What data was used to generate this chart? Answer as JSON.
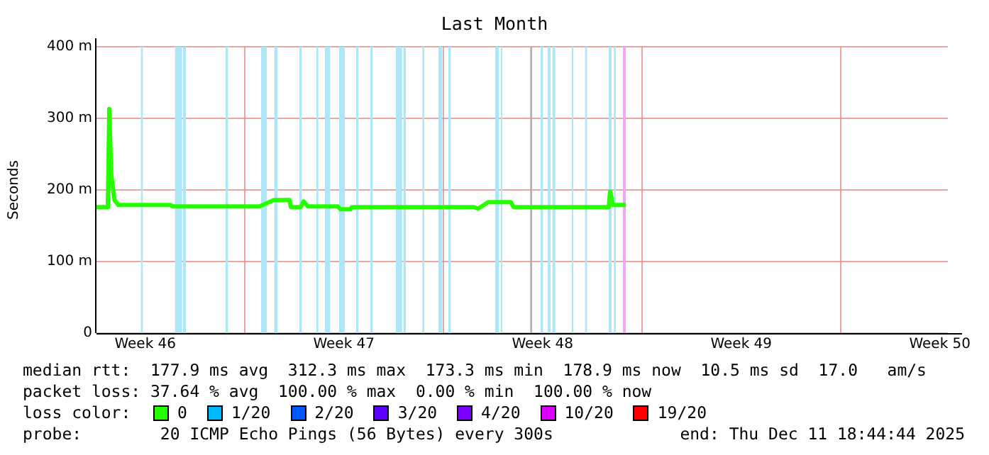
{
  "chart_data": {
    "type": "line",
    "title": "Last Month",
    "ylabel": "Seconds",
    "legend_title": "loss color:",
    "legend": "bottom",
    "grid": true,
    "marker": "none",
    "line_style": "solid",
    "xlim": [
      "2025-11-11T18:44",
      "2025-12-11T18:44"
    ],
    "xticks": [
      {
        "value": "2025-11-13T12:00",
        "label": "Week 46"
      },
      {
        "value": "2025-11-17",
        "label": null
      },
      {
        "value": "2025-11-20T12:00",
        "label": "Week 47"
      },
      {
        "value": "2025-11-24",
        "label": null
      },
      {
        "value": "2025-11-27T12:00",
        "label": "Week 48"
      },
      {
        "value": "2025-12-01",
        "label": null
      },
      {
        "value": "2025-12-04T12:00",
        "label": "Week 49"
      },
      {
        "value": "2025-12-08",
        "label": null
      },
      {
        "value": "2025-12-11T12:00",
        "label": "Week 50"
      }
    ],
    "ylim": [
      0,
      400
    ],
    "yticks": [
      0,
      {
        "value": 100,
        "label": "100 m"
      },
      {
        "value": 200,
        "label": "200 m"
      },
      {
        "value": 300,
        "label": "300 m"
      },
      {
        "value": 400,
        "label": "400 m"
      }
    ],
    "series": [
      {
        "name": "0",
        "color": "#26ff00",
        "x": [
          "2025-11-11T18:44",
          "2025-11-12T04:20",
          "2025-11-12T05:32",
          "2025-11-12T07:08",
          "2025-11-12T09:56",
          "2025-11-12T13:08",
          "2025-11-14T09:08",
          "2025-11-14T11:32",
          "2025-11-17T12:44",
          "2025-11-18T00:44",
          "2025-11-18T13:56",
          "2025-11-18T15:08",
          "2025-11-18T23:32",
          "2025-11-19T01:56",
          "2025-11-19T05:32",
          "2025-11-20T06:44",
          "2025-11-20T09:08",
          "2025-11-20T17:32",
          "2025-11-20T18:44",
          "2025-11-25T01:56",
          "2025-11-25T05:32",
          "2025-11-25T10:20",
          "2025-11-25T13:56",
          "2025-11-26T09:08",
          "2025-11-26T11:32",
          "2025-11-29T19:56",
          "2025-11-29T21:08",
          "2025-11-29T23:32",
          "2025-11-30T10:20"
        ],
        "values": [
          176,
          176,
          313,
          223,
          186,
          179,
          179,
          177,
          177,
          186,
          186,
          176,
          176,
          184,
          177,
          177,
          173,
          173,
          176,
          176,
          174,
          179,
          183,
          183,
          176,
          176,
          198,
          179,
          179
        ]
      },
      {
        "name": "1/20",
        "color": "#00b8ff"
      },
      {
        "name": "2/20",
        "color": "#0059ff"
      },
      {
        "name": "3/20",
        "color": "#5e00ff"
      },
      {
        "name": "4/20",
        "color": "#7e00ff"
      },
      {
        "name": "10/20",
        "color": "#dd00ff"
      },
      {
        "name": "19/20",
        "color": "#ff0000"
      }
    ],
    "bands": [
      {
        "axis": "x",
        "from": "2025-11-13T08:20",
        "to": "2025-11-13T09:56",
        "color": "#aee6f8"
      },
      {
        "axis": "x",
        "from": "2025-11-14T13:08",
        "to": "2025-11-14T19:08",
        "color": "#aee6f8"
      },
      {
        "axis": "x",
        "from": "2025-11-14T19:56",
        "to": "2025-11-14T22:20",
        "color": "#aee6f8"
      },
      {
        "axis": "x",
        "from": "2025-11-16T07:56",
        "to": "2025-11-16T09:56",
        "color": "#aee6f8"
      },
      {
        "axis": "x",
        "from": "2025-11-17T13:56",
        "to": "2025-11-17T18:44",
        "color": "#aee6f8"
      },
      {
        "axis": "x",
        "from": "2025-11-18T01:08",
        "to": "2025-11-18T03:56",
        "color": "#aee6f8"
      },
      {
        "axis": "x",
        "from": "2025-11-18T22:20",
        "to": "2025-11-19T00:20",
        "color": "#aee6f8"
      },
      {
        "axis": "x",
        "from": "2025-11-19T12:44",
        "to": "2025-11-19T14:20",
        "color": "#aee6f8"
      },
      {
        "axis": "x",
        "from": "2025-11-19T19:56",
        "to": "2025-11-20T00:20",
        "color": "#aee6f8"
      },
      {
        "axis": "x",
        "from": "2025-11-20T07:56",
        "to": "2025-11-20T12:44",
        "color": "#aee6f8"
      },
      {
        "axis": "x",
        "from": "2025-11-20T22:20",
        "to": "2025-11-21T00:20",
        "color": "#aee6f8"
      },
      {
        "axis": "x",
        "from": "2025-11-21T10:20",
        "to": "2025-11-21T12:20",
        "color": "#aee6f8"
      },
      {
        "axis": "x",
        "from": "2025-11-22T07:56",
        "to": "2025-11-22T13:08",
        "color": "#aee6f8"
      },
      {
        "axis": "x",
        "from": "2025-11-22T14:20",
        "to": "2025-11-22T16:20",
        "color": "#aee6f8"
      },
      {
        "axis": "x",
        "from": "2025-11-23T06:20",
        "to": "2025-11-23T07:56",
        "color": "#aee6f8"
      },
      {
        "axis": "x",
        "from": "2025-11-23T19:56",
        "to": "2025-11-23T23:08",
        "color": "#aee6f8"
      },
      {
        "axis": "x",
        "from": "2025-11-24T04:20",
        "to": "2025-11-24T06:20",
        "color": "#aee6f8"
      },
      {
        "axis": "x",
        "from": "2025-11-25T19:56",
        "to": "2025-11-25T23:08",
        "color": "#aee6f8"
      },
      {
        "axis": "x",
        "from": "2025-11-26T00:44",
        "to": "2025-11-26T01:56",
        "color": "#aee6f8"
      },
      {
        "axis": "x",
        "from": "2025-11-27T10:20",
        "to": "2025-11-27T12:20",
        "color": "#aee6f8"
      },
      {
        "axis": "x",
        "from": "2025-11-27T16:20",
        "to": "2025-11-27T18:44",
        "color": "#aee6f8"
      },
      {
        "axis": "x",
        "from": "2025-11-27T20:20",
        "to": "2025-11-27T22:44",
        "color": "#aee6f8"
      },
      {
        "axis": "x",
        "from": "2025-11-28T12:44",
        "to": "2025-11-28T13:56",
        "color": "#aee6f8"
      },
      {
        "axis": "x",
        "from": "2025-11-28T23:56",
        "to": "2025-11-29T01:32",
        "color": "#aee6f8"
      },
      {
        "axis": "x",
        "from": "2025-11-29T19:56",
        "to": "2025-11-29T22:20",
        "color": "#aee6f8"
      },
      {
        "axis": "x",
        "from": "2025-11-30T00:20",
        "to": "2025-11-30T01:56",
        "color": "#aee6f8"
      },
      {
        "axis": "x",
        "from": "2025-11-30T07:56",
        "to": "2025-11-30T10:20",
        "color": "#f0a8f0"
      },
      {
        "axis": "x",
        "from": "2025-11-27T01:32",
        "to": "2025-11-27T03:08",
        "color": "#b0b0b0"
      }
    ],
    "annotations": [
      "median rtt:  177.9 ms avg  312.3 ms max  173.3 ms min  178.9 ms now  10.5 ms sd  17.0   am/s",
      "packet loss: 37.64 % avg  100.00 % max  0.00 % min  100.00 % now",
      "probe:        20 ICMP Echo Pings (56 Bytes) every 300s",
      "end: Thu Dec 11 18:44:44 2025"
    ]
  }
}
